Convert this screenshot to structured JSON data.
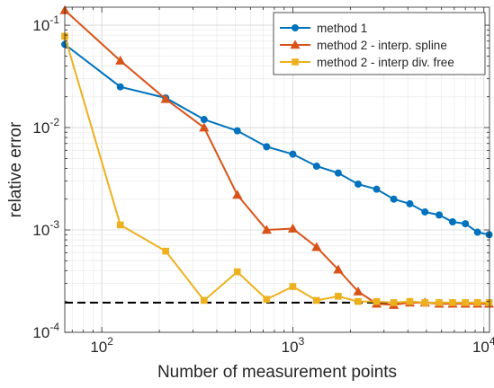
{
  "chart_data": {
    "type": "line",
    "xlabel": "Number of measurement points",
    "ylabel": "relative error",
    "xscale": "log",
    "yscale": "log",
    "xlim": [
      64,
      10700
    ],
    "ylim": [
      0.0001,
      0.15
    ],
    "grid": true,
    "legend_position": "top-right",
    "x_ticks": [
      {
        "value": 100,
        "base": "10",
        "exp": "2"
      },
      {
        "value": 1000,
        "base": "10",
        "exp": "3"
      },
      {
        "value": 10000,
        "base": "10",
        "exp": "4"
      }
    ],
    "y_ticks": [
      {
        "value": 0.0001,
        "base": "10",
        "exp": "-4"
      },
      {
        "value": 0.001,
        "base": "10",
        "exp": "-3"
      },
      {
        "value": 0.01,
        "base": "10",
        "exp": "-2"
      },
      {
        "value": 0.1,
        "base": "10",
        "exp": "-1"
      }
    ],
    "reference_line": {
      "y": 0.000195,
      "style": "dashed",
      "color": "#000000"
    },
    "series": [
      {
        "name": "method 1",
        "color": "#0072BD",
        "marker": "circle",
        "x": [
          64,
          125,
          216,
          343,
          512,
          729,
          1000,
          1331,
          1728,
          2197,
          2744,
          3375,
          4096,
          4913,
          5832,
          6859,
          8000,
          9261,
          10648
        ],
        "y": [
          0.065,
          0.025,
          0.0195,
          0.012,
          0.0093,
          0.0065,
          0.0055,
          0.0042,
          0.0036,
          0.0028,
          0.0025,
          0.002,
          0.0018,
          0.0015,
          0.0014,
          0.0012,
          0.00115,
          0.00095,
          0.0009
        ]
      },
      {
        "name": "method 2 - interp. spline",
        "color": "#D95319",
        "marker": "triangle",
        "x": [
          64,
          125,
          216,
          343,
          512,
          729,
          1000,
          1331,
          1728,
          2197,
          2744,
          3375,
          4096,
          4913,
          5832,
          6859,
          8000,
          9261,
          10648
        ],
        "y": [
          0.14,
          0.045,
          0.019,
          0.01,
          0.0022,
          0.001,
          0.00103,
          0.00068,
          0.00041,
          0.00025,
          0.00019,
          0.000185,
          0.000195,
          0.000195,
          0.00019,
          0.00019,
          0.00019,
          0.00019,
          0.00019
        ]
      },
      {
        "name": "method 2 - interp div. free",
        "color": "#EDB120",
        "marker": "square",
        "x": [
          64,
          125,
          216,
          343,
          512,
          729,
          1000,
          1331,
          1728,
          2197,
          2744,
          3375,
          4096,
          4913,
          5832,
          6859,
          8000,
          9261,
          10648
        ],
        "y": [
          0.078,
          0.00112,
          0.00062,
          0.000205,
          0.00039,
          0.00021,
          0.00028,
          0.000205,
          0.000225,
          0.0002,
          0.0002,
          0.000195,
          0.0002,
          0.000195,
          0.000195,
          0.000195,
          0.000195,
          0.000195,
          0.000195
        ]
      }
    ]
  }
}
